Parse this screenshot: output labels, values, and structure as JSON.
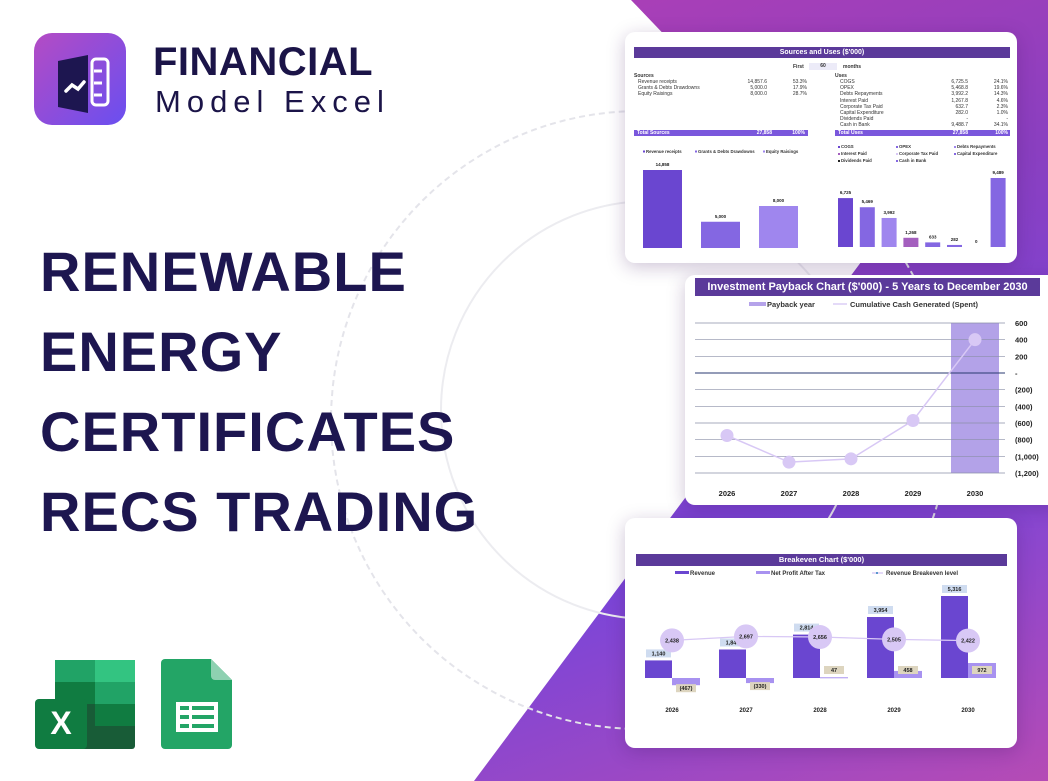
{
  "brand": {
    "name_line1": "FINANCIAL",
    "name_line2": "Model Excel"
  },
  "headline": [
    "RENEWABLE",
    "ENERGY",
    "CERTIFICATES",
    "RECS TRADING"
  ],
  "app_icons": [
    "excel-icon",
    "google-sheets-icon"
  ],
  "colors": {
    "dark_purple": "#5b3a9a",
    "bar1": "#6a46d0",
    "bar2": "#8467e2",
    "bar3": "#9f86ee",
    "light": "#d8c8f5",
    "navy": "#1d1650"
  },
  "sources_uses": {
    "title": "Sources and Uses ($'000)",
    "first_label": "First",
    "months_value": "60",
    "months_label": "months",
    "sources_label": "Sources",
    "sources": [
      [
        "Revenue receipts",
        "14,857.6",
        "53.3%"
      ],
      [
        "Grants & Debts Drawdowns",
        "5,000.0",
        "17.9%"
      ],
      [
        "Equity Raisings",
        "8,000.0",
        "28.7%"
      ]
    ],
    "total_sources": [
      "Total Sources",
      "27,858",
      "100%"
    ],
    "uses_label": "Uses",
    "uses": [
      [
        "COGS",
        "6,725.5",
        "24.1%"
      ],
      [
        "OPEX",
        "5,468.8",
        "19.6%"
      ],
      [
        "Debts Repayments",
        "3,992.2",
        "14.3%"
      ],
      [
        "Interest Paid",
        "1,267.8",
        "4.6%"
      ],
      [
        "Corporate Tax Paid",
        "632.7",
        "2.3%"
      ],
      [
        "Capital Expenditure",
        "282.0",
        "1.0%"
      ],
      [
        "Dividends Paid",
        "-",
        "-"
      ],
      [
        "Cash in Bank",
        "9,488.7",
        "34.1%"
      ]
    ],
    "total_uses": [
      "Total Uses",
      "27,858",
      "100%"
    ],
    "sources_chart": {
      "categories": [
        "Revenue receipts",
        "Grants & Debts Drawdowns",
        "Equity Raisings"
      ],
      "values": [
        14858,
        5000,
        8000
      ],
      "labels": [
        "14,858",
        "5,000",
        "8,000"
      ]
    },
    "uses_chart": {
      "categories": [
        "COGS",
        "OPEX",
        "Debts Repayments",
        "Interest Paid",
        "Corporate Tax Paid",
        "Capital Expenditure",
        "Dividends Paid",
        "Cash in Bank"
      ],
      "values": [
        6725,
        5469,
        3992,
        1268,
        633,
        282,
        0,
        9489
      ],
      "labels": [
        "6,725",
        "5,469",
        "3,992",
        "1,268",
        "633",
        "282",
        "0",
        "9,489"
      ]
    }
  },
  "payback": {
    "title": "Investment Payback Chart ($'000) - 5 Years to December 2030",
    "legend": [
      "Payback year",
      "Cumulative Cash Generated (Spent)"
    ],
    "years": [
      "2026",
      "2027",
      "2028",
      "2029",
      "2030"
    ],
    "cumulative": [
      -750,
      -1070,
      -1030,
      -570,
      400
    ],
    "payback_year": "2030",
    "y_ticks": [
      "600",
      "400",
      "200",
      "-",
      "(200)",
      "(400)",
      "(600)",
      "(800)",
      "(1,000)",
      "(1,200)"
    ],
    "ylim": [
      -1200,
      600
    ]
  },
  "breakeven": {
    "title": "Breakeven Chart ($'000)",
    "legend": [
      "Revenue",
      "Net Profit After Tax",
      "Revenue Breakeven level"
    ],
    "years": [
      "2026",
      "2027",
      "2028",
      "2029",
      "2030"
    ],
    "revenue": [
      1140,
      1848,
      2814,
      3954,
      5316
    ],
    "revenue_labels": [
      "1,140",
      "1,848",
      "2,814",
      "3,954",
      "5,316"
    ],
    "net_profit": [
      -467,
      -330,
      47,
      458,
      972
    ],
    "net_profit_labels": [
      "(467)",
      "(330)",
      "47",
      "458",
      "972"
    ],
    "breakeven": [
      2438,
      2697,
      2656,
      2505,
      2422
    ],
    "breakeven_labels": [
      "2,438",
      "2,697",
      "2,656",
      "2,505",
      "2,422"
    ]
  }
}
